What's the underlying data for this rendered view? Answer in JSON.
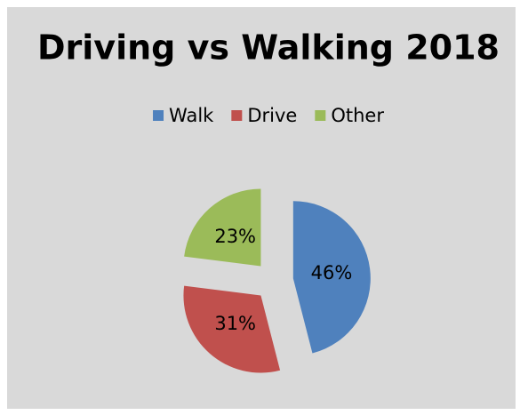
{
  "chart_data": {
    "type": "pie",
    "title": "Driving vs Walking 2018",
    "categories": [
      "Walk",
      "Drive",
      "Other"
    ],
    "values": [
      46,
      31,
      23
    ],
    "value_labels": [
      "46%",
      "31%",
      "23%"
    ],
    "colors": [
      "#4f81bd",
      "#c0504d",
      "#9bbb59"
    ],
    "exploded": true,
    "legend": "top"
  }
}
